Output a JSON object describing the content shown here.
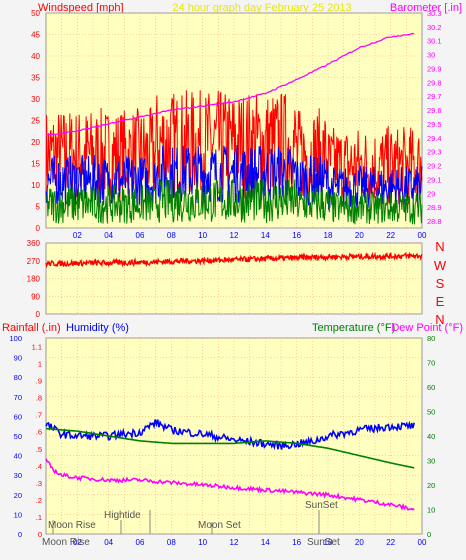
{
  "header": {
    "left_label": "Windspeed [mph]",
    "center_label": "24 hour graph day   February 25 2013",
    "right_label": "Barometer [.in]"
  },
  "x_ticks": [
    "02",
    "04",
    "06",
    "08",
    "10",
    "12",
    "14",
    "16",
    "18",
    "20",
    "22",
    "00"
  ],
  "colors": {
    "wind": "#ff0000",
    "gust_avg": "#0000ff",
    "avg": "#008000",
    "barometer": "#ff00ff",
    "direction": "#ff0000",
    "humidity": "#0000ff",
    "temperature": "#008000",
    "dewpoint": "#ff00ff",
    "plot_bg": "#ffffc0",
    "grid": "#ffa07a"
  },
  "direction_labels": [
    "N",
    "W",
    "S",
    "E",
    "N"
  ],
  "middle_header": {
    "rain": "Rainfall (.in)",
    "humidity": "Humidity (%)",
    "temperature": "Temperature (°F)",
    "dewpoint": "Dew Point (°F)"
  },
  "annotations": {
    "moonrise": "Moon Rise",
    "moonrise_top": "Moon Rise",
    "hightide": "Hightide",
    "moonset": "Moon Set",
    "sunset": "SunSet",
    "sunset_bottom": "SunSet"
  },
  "chart_data": [
    {
      "type": "line",
      "name": "wind-barometer",
      "x_range": [
        0,
        24
      ],
      "y_left": {
        "label": "Windspeed [mph]",
        "ticks": [
          0,
          5,
          10,
          15,
          20,
          25,
          30,
          35,
          40,
          45,
          50
        ],
        "range": [
          0,
          50
        ]
      },
      "y_right": {
        "label": "Barometer [.in]",
        "ticks": [
          28.8,
          28.9,
          29,
          29.1,
          29.2,
          29.3,
          29.4,
          29.5,
          29.6,
          29.7,
          29.8,
          29.9,
          30,
          30.1,
          30.2,
          30.3
        ],
        "range": [
          28.75,
          30.3
        ]
      },
      "series": [
        {
          "name": "Windspeed gust",
          "color": "#ff0000",
          "mean": 17,
          "spread": 11,
          "kind": "noise"
        },
        {
          "name": "Windspeed",
          "color": "#0000ff",
          "mean": 11,
          "spread": 6,
          "kind": "noise"
        },
        {
          "name": "Windspeed avg",
          "color": "#008000",
          "mean": 5.5,
          "spread": 4.5,
          "kind": "noise"
        },
        {
          "name": "Barometer",
          "color": "#ff00ff",
          "kind": "trend",
          "x": [
            0,
            2,
            4,
            6,
            8,
            10,
            12,
            14,
            16,
            18,
            20,
            22,
            23.5
          ],
          "y": [
            29.42,
            29.45,
            29.5,
            29.55,
            29.6,
            29.63,
            29.66,
            29.72,
            29.82,
            29.93,
            30.05,
            30.13,
            30.15
          ]
        }
      ]
    },
    {
      "type": "line",
      "name": "wind-direction",
      "x_range": [
        0,
        24
      ],
      "y_left": {
        "ticks": [
          0,
          90,
          180,
          270,
          360
        ],
        "range": [
          0,
          360
        ]
      },
      "series": [
        {
          "name": "Wind direction",
          "color": "#ff0000",
          "kind": "trend_noise",
          "x": [
            0,
            6,
            12,
            18,
            24
          ],
          "y": [
            255,
            262,
            275,
            290,
            295
          ],
          "spread": 14
        }
      ]
    },
    {
      "type": "line",
      "name": "rain-humidity-temperature",
      "x_range": [
        0,
        24
      ],
      "y_rain": {
        "ticks": [
          0,
          0.1,
          0.2,
          0.3,
          0.4,
          0.5,
          0.6,
          0.7,
          0.8,
          0.9,
          1,
          1.1
        ],
        "range": [
          0,
          1.15
        ]
      },
      "y_humidity": {
        "ticks": [
          0,
          10,
          20,
          30,
          40,
          50,
          60,
          70,
          80,
          90,
          100
        ],
        "range": [
          0,
          100
        ]
      },
      "y_temp": {
        "ticks": [
          0,
          10,
          20,
          30,
          40,
          50,
          60,
          70,
          80
        ],
        "range": [
          0,
          80
        ]
      },
      "series": [
        {
          "name": "Humidity",
          "color": "#0000ff",
          "kind": "trend_noise",
          "x": [
            0,
            1,
            2,
            4,
            6,
            7,
            8,
            10,
            12,
            14,
            15,
            16,
            17,
            18,
            20,
            22,
            23.5
          ],
          "y": [
            56,
            51,
            50,
            50,
            52,
            57,
            53,
            51,
            48,
            46,
            45,
            46,
            47,
            50,
            53,
            55,
            55
          ],
          "spread": 2
        },
        {
          "name": "Temperature",
          "color": "#008000",
          "kind": "trend",
          "x": [
            0,
            2,
            4,
            6,
            8,
            10,
            12,
            14,
            16,
            18,
            20,
            22,
            23.5
          ],
          "y": [
            43,
            42,
            40,
            38,
            37,
            37,
            37,
            38,
            37,
            35,
            32,
            29,
            27
          ]
        },
        {
          "name": "Dew Point",
          "color": "#ff00ff",
          "kind": "trend_noise",
          "x": [
            0,
            0.5,
            1,
            2,
            4,
            6,
            8,
            10,
            12,
            14,
            16,
            18,
            20,
            22,
            23.5
          ],
          "y": [
            30,
            26,
            24,
            23,
            22,
            22,
            21,
            20,
            19,
            18,
            17,
            16,
            14,
            12,
            10
          ],
          "spread": 0.8
        }
      ]
    }
  ]
}
